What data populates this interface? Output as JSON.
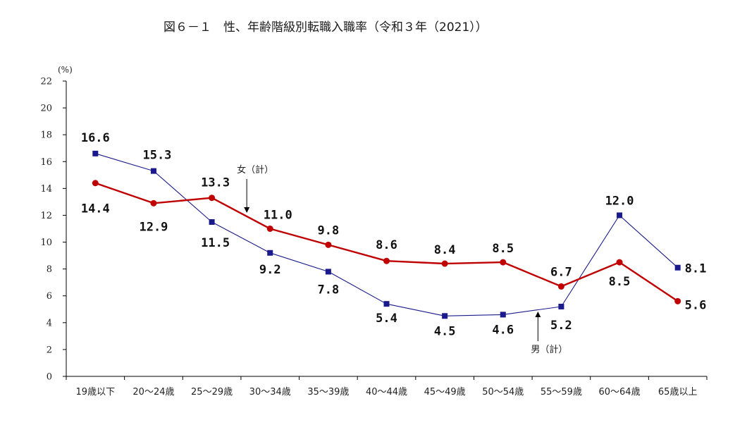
{
  "chart_data": {
    "type": "line",
    "title": "図６－１　性、年齢階級別転職入職率（令和３年（2021））",
    "ylabel": "(%)",
    "ylim": [
      0,
      22
    ],
    "yticks": [
      0,
      2,
      4,
      6,
      8,
      10,
      12,
      14,
      16,
      18,
      20,
      22
    ],
    "grid": false,
    "categories": [
      "19歳以下",
      "20～24歳",
      "25～29歳",
      "30～34歳",
      "35～39歳",
      "40～44歳",
      "45～49歳",
      "50～54歳",
      "55～59歳",
      "60～64歳",
      "65歳以上"
    ],
    "series": [
      {
        "key": "male",
        "color": "#1a1a8c",
        "marker": "square",
        "values": [
          16.6,
          15.3,
          11.5,
          9.2,
          7.8,
          5.4,
          4.5,
          4.6,
          5.2,
          12.0,
          8.1
        ],
        "labels": [
          "16.6",
          "15.3",
          "11.5",
          "9.2",
          "7.8",
          "5.4",
          "4.5",
          "4.6",
          "5.2",
          "12.0",
          "8.1"
        ]
      },
      {
        "key": "female",
        "color": "#c00000",
        "marker": "circle",
        "values": [
          14.4,
          12.9,
          13.3,
          11.0,
          9.8,
          8.6,
          8.4,
          8.5,
          6.7,
          8.5,
          5.6
        ],
        "labels": [
          "14.4",
          "12.9",
          "13.3",
          "11.0",
          "9.8",
          "8.6",
          "8.4",
          "8.5",
          "6.7",
          "8.5",
          "5.6"
        ]
      }
    ],
    "annotations": [
      {
        "key": "female",
        "text": "女（計）"
      },
      {
        "key": "male",
        "text": "男（計）"
      }
    ]
  }
}
